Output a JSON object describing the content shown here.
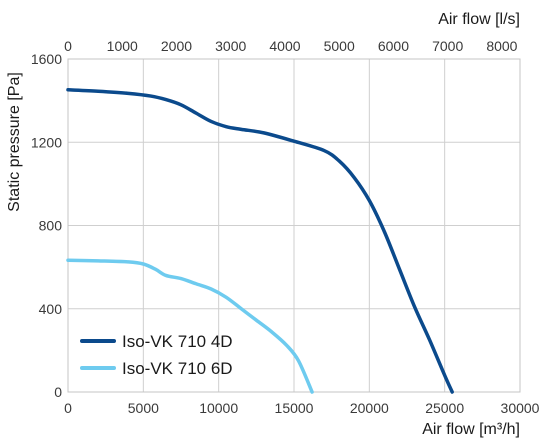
{
  "chart_data": {
    "type": "line",
    "ylabel": "Static pressure [Pa]",
    "xlabel_bottom": "Air flow [m³/h]",
    "xlabel_top": "Air flow [l/s]",
    "ylim": [
      0,
      1600
    ],
    "xlim_bottom": [
      0,
      30000
    ],
    "xlim_top": [
      0,
      8333.3
    ],
    "y_ticks": [
      0,
      400,
      800,
      1200,
      1600
    ],
    "x_ticks_bottom": [
      0,
      5000,
      10000,
      15000,
      20000,
      25000,
      30000
    ],
    "x_ticks_top": [
      0,
      1000,
      2000,
      3000,
      4000,
      5000,
      6000,
      7000,
      8000
    ],
    "grid": true,
    "legend_position": "bottom-left",
    "series": [
      {
        "name": "Iso-VK 710 4D",
        "color": "#0b4a8c",
        "x": [
          0,
          2000,
          4000,
          5500,
          6500,
          7500,
          8500,
          9500,
          10500,
          11500,
          13000,
          15000,
          17000,
          18000,
          19000,
          20000,
          21000,
          22000,
          23000,
          24000,
          25000,
          25500
        ],
        "y": [
          1452,
          1445,
          1435,
          1422,
          1405,
          1380,
          1340,
          1300,
          1275,
          1262,
          1245,
          1205,
          1160,
          1110,
          1030,
          920,
          770,
          590,
          410,
          250,
          80,
          0
        ]
      },
      {
        "name": "Iso-VK 710 6D",
        "color": "#6ecbef",
        "x": [
          0,
          2000,
          4000,
          5000,
          5800,
          6500,
          7500,
          8500,
          9500,
          10500,
          11500,
          12500,
          13500,
          14500,
          15300,
          16200
        ],
        "y": [
          633,
          630,
          625,
          615,
          590,
          560,
          545,
          520,
          495,
          455,
          400,
          345,
          290,
          225,
          150,
          0
        ]
      }
    ]
  }
}
